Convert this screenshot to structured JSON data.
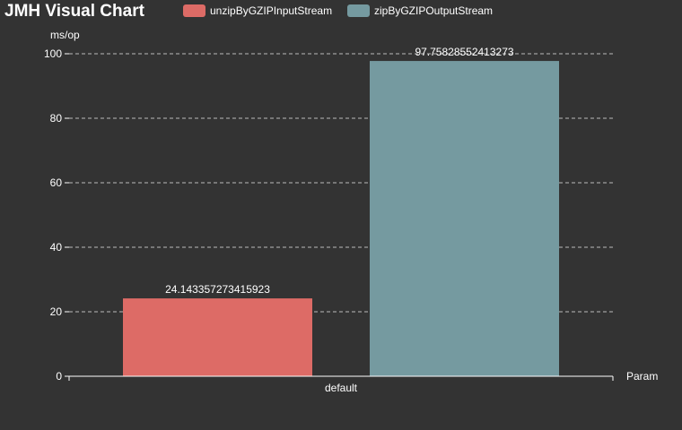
{
  "colors": {
    "background": "#333333",
    "text": "#ffffff",
    "series_1": "#dd6b66",
    "series_2": "#759aa0"
  },
  "chart_data": {
    "type": "bar",
    "title": "JMH Visual Chart",
    "ylabel": "ms/op",
    "xlabel": "Param",
    "categories": [
      "default"
    ],
    "ylim": [
      0,
      100
    ],
    "yticks": [
      0,
      20,
      40,
      60,
      80,
      100
    ],
    "grid": true,
    "legend_position": "top",
    "series": [
      {
        "name": "unzipByGZIPInputStream",
        "values": [
          24.143357273415923
        ],
        "label": "24.143357273415923",
        "color": "#dd6b66"
      },
      {
        "name": "zipByGZIPOutputStream",
        "values": [
          97.75828552413273
        ],
        "label": "97.75828552413273",
        "color": "#759aa0"
      }
    ]
  }
}
